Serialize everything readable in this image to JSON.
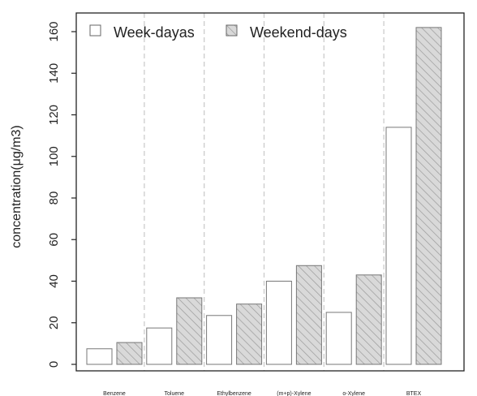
{
  "chart_data": {
    "type": "bar",
    "title": "",
    "xlabel": "",
    "ylabel": "concentration(μg/m3)",
    "categories": [
      "Benzene",
      "Toluene",
      "Ethylbenzene",
      "(m+p)-Xylene",
      "o-Xylene",
      "BTEX"
    ],
    "series": [
      {
        "name": "Week-dayas",
        "values": [
          7.5,
          17.5,
          23.5,
          40,
          25,
          114
        ],
        "fill": "#ffffff",
        "pattern": "none"
      },
      {
        "name": "Weekend-days",
        "values": [
          10.5,
          32,
          29,
          47.5,
          43,
          162
        ],
        "fill": "#d9d9d9",
        "pattern": "diagonal-hatch"
      }
    ],
    "ylim": [
      0,
      170
    ],
    "yticks": [
      0,
      20,
      40,
      60,
      80,
      100,
      120,
      140,
      160
    ],
    "grid": "vertical dashed separators between categories",
    "legend_position": "top-left"
  },
  "colors": {
    "axis": "#222222",
    "bar_stroke": "#777777",
    "hatch_fill": "#d9d9d9",
    "hatch_line": "#9a9a9a",
    "separator": "#c8c8c8"
  }
}
